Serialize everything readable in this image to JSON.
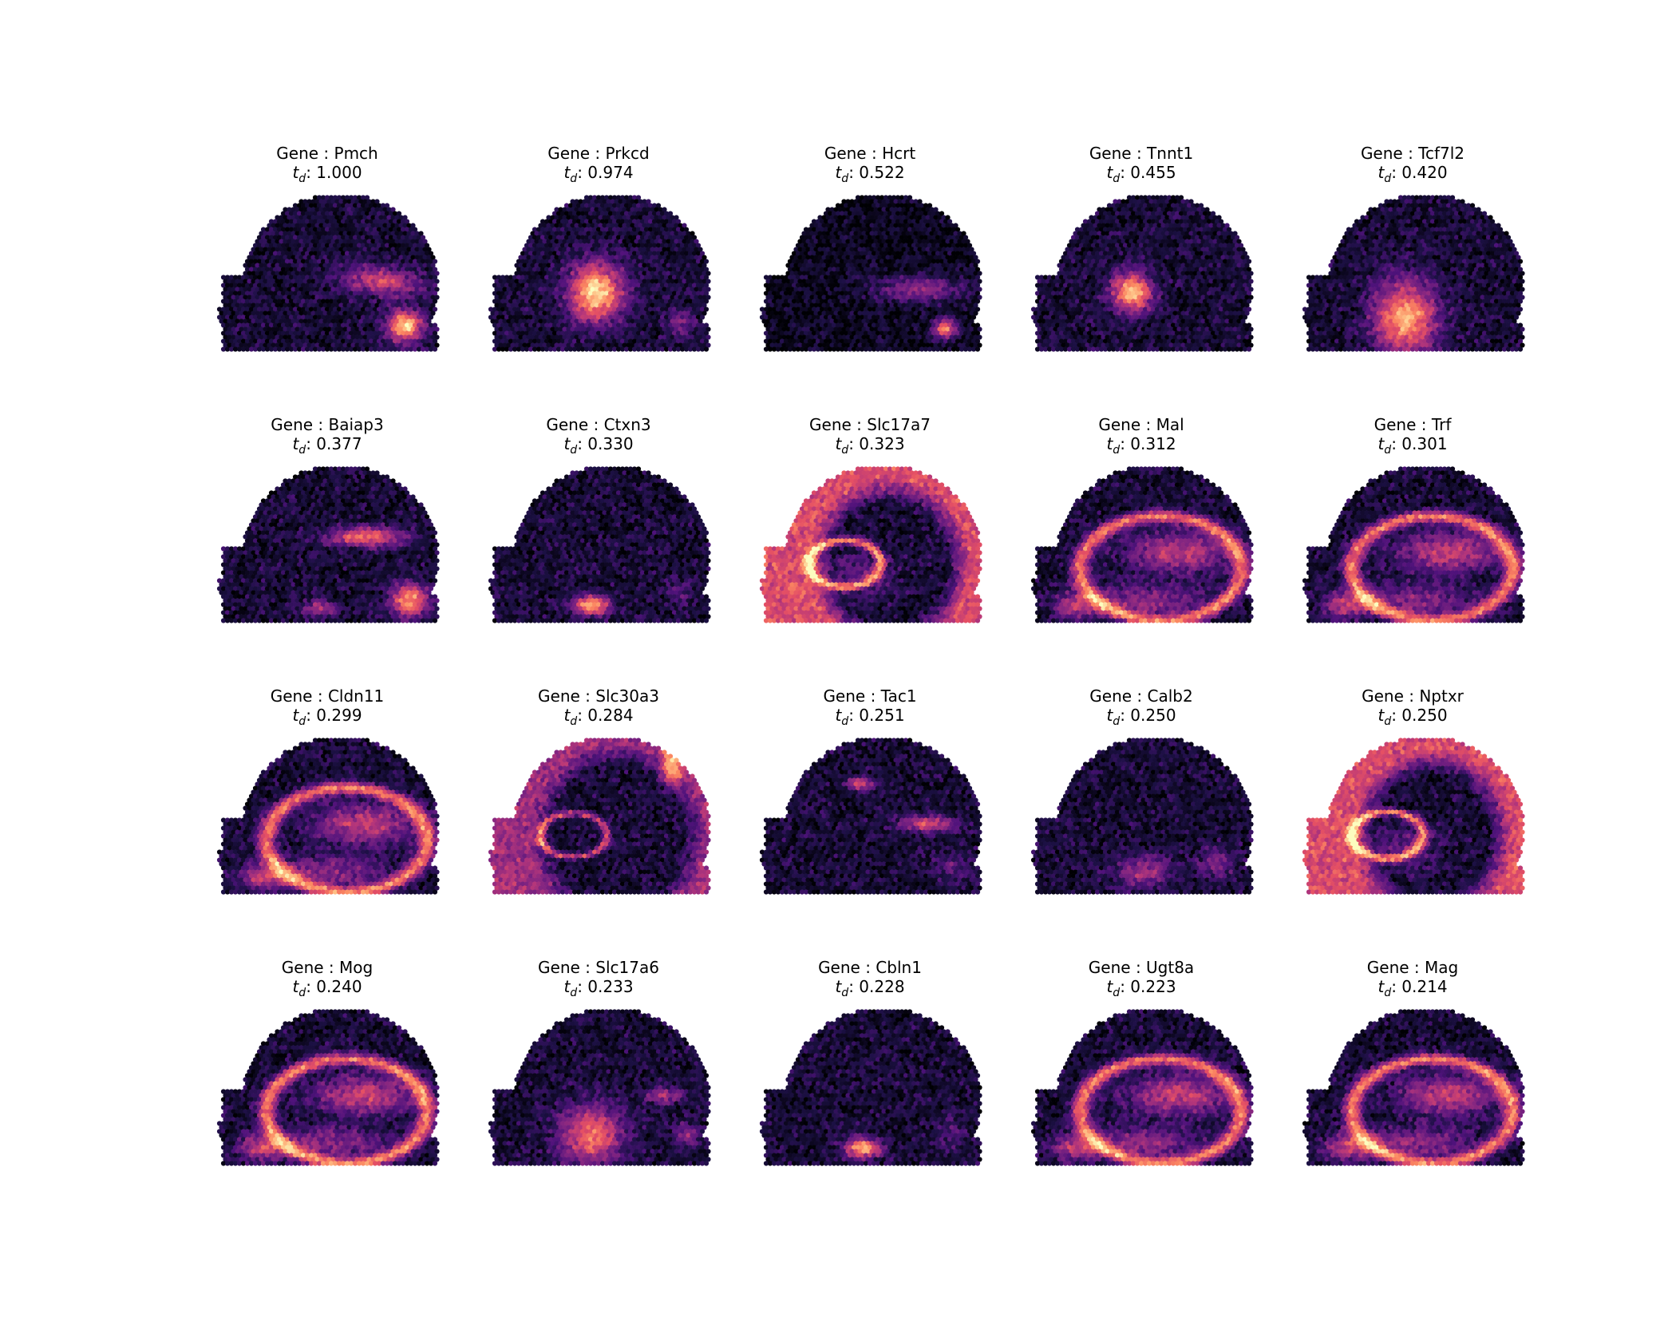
{
  "chart_data": {
    "type": "heatmap",
    "description_layout": "4 x 5 grid of spatial expression maps",
    "colormap": "magma",
    "grid": false,
    "title_prefix": "Gene : ",
    "stat_symbol": "t",
    "stat_subscript": "d",
    "panels": [
      {
        "gene": "Pmch",
        "td": "1.000",
        "pattern": "pmch"
      },
      {
        "gene": "Prkcd",
        "td": "0.974",
        "pattern": "thal_mid"
      },
      {
        "gene": "Hcrt",
        "td": "0.522",
        "pattern": "hcrt"
      },
      {
        "gene": "Tnnt1",
        "td": "0.455",
        "pattern": "thal_small"
      },
      {
        "gene": "Tcf7l2",
        "td": "0.420",
        "pattern": "thal_big"
      },
      {
        "gene": "Baiap3",
        "td": "0.377",
        "pattern": "baiap3"
      },
      {
        "gene": "Ctxn3",
        "td": "0.330",
        "pattern": "ctxn3"
      },
      {
        "gene": "Slc17a7",
        "td": "0.323",
        "pattern": "slc17a7"
      },
      {
        "gene": "Mal",
        "td": "0.312",
        "pattern": "wm"
      },
      {
        "gene": "Trf",
        "td": "0.301",
        "pattern": "wm"
      },
      {
        "gene": "Cldn11",
        "td": "0.299",
        "pattern": "wm"
      },
      {
        "gene": "Slc30a3",
        "td": "0.284",
        "pattern": "slc30a3"
      },
      {
        "gene": "Tac1",
        "td": "0.251",
        "pattern": "tac1"
      },
      {
        "gene": "Calb2",
        "td": "0.250",
        "pattern": "calb2"
      },
      {
        "gene": "Nptxr",
        "td": "0.250",
        "pattern": "slc17a7"
      },
      {
        "gene": "Mog",
        "td": "0.240",
        "pattern": "wm"
      },
      {
        "gene": "Slc17a6",
        "td": "0.233",
        "pattern": "slc17a6"
      },
      {
        "gene": "Cbln1",
        "td": "0.228",
        "pattern": "ctxn3"
      },
      {
        "gene": "Ugt8a",
        "td": "0.223",
        "pattern": "wm"
      },
      {
        "gene": "Mag",
        "td": "0.214",
        "pattern": "wm"
      }
    ]
  }
}
